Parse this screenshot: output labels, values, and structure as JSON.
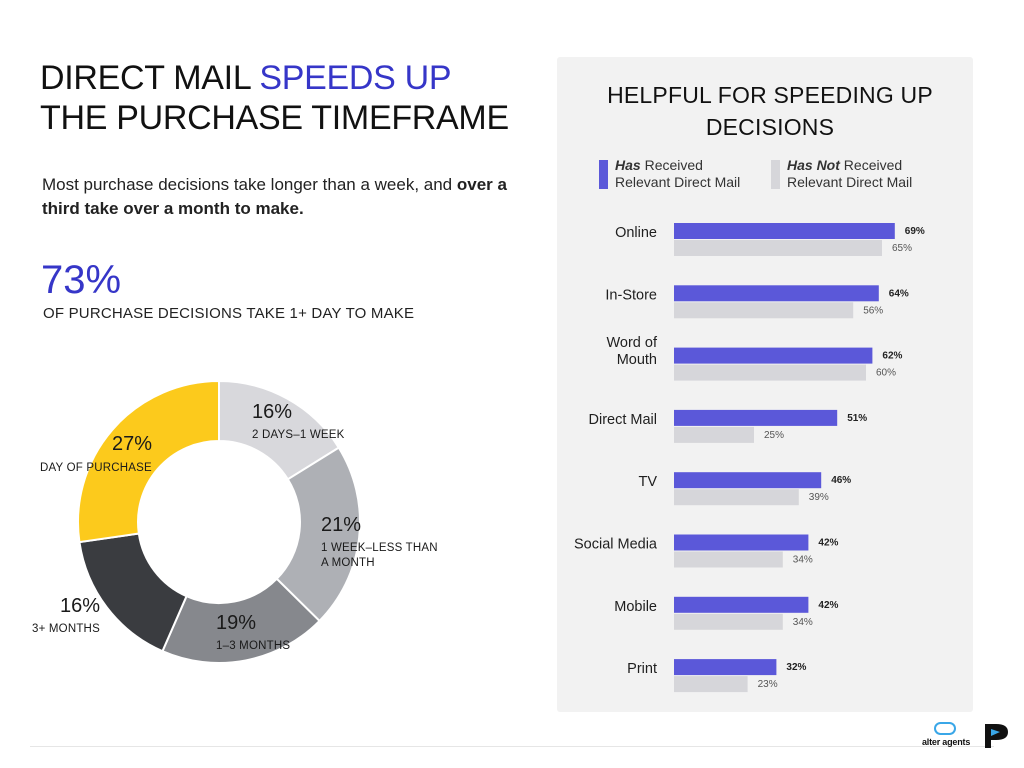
{
  "header": {
    "title_line1_part1": "DIRECT MAIL ",
    "title_line1_accent": "SPEEDS UP",
    "title_line2": "THE PURCHASE TIMEFRAME",
    "subtitle_part1": "Most purchase decisions take longer than a week, and ",
    "subtitle_bold": "over a third take over a month to make.",
    "big_stat": "73%",
    "big_stat_label": "OF PURCHASE DECISIONS TAKE 1+ DAY TO MAKE"
  },
  "colors": {
    "accent": "#3636c8",
    "has_received": "#5b58d9",
    "has_not_received": "#d6d6da",
    "panel_bg": "#f2f2f2",
    "pie": [
      "#fcca1c",
      "#d8d8dc",
      "#aeb0b5",
      "#86888d",
      "#3a3c40"
    ]
  },
  "chart_data": [
    {
      "type": "pie",
      "donut": true,
      "slices": [
        {
          "label": "DAY OF PURCHASE",
          "value": 27,
          "value_label": "27%"
        },
        {
          "label": "2 DAYS–1 WEEK",
          "value": 16,
          "value_label": "16%"
        },
        {
          "label_line1": "1 WEEK–LESS THAN",
          "label_line2": "A MONTH",
          "value": 21,
          "value_label": "21%"
        },
        {
          "label": "1–3 MONTHS",
          "value": 19,
          "value_label": "19%"
        },
        {
          "label": "3+ MONTHS",
          "value": 16,
          "value_label": "16%"
        }
      ]
    },
    {
      "type": "bar",
      "orientation": "horizontal",
      "title_line1": "HELPFUL FOR SPEEDING UP",
      "title_line2": "DECISIONS",
      "xlim": [
        0,
        100
      ],
      "legend": [
        {
          "em": "Has",
          "rest": " Received",
          "line2": "Relevant Direct Mail"
        },
        {
          "em": "Has Not",
          "rest": " Received",
          "line2": "Relevant Direct Mail"
        }
      ],
      "categories": [
        [
          "Online"
        ],
        [
          "In-Store"
        ],
        [
          "Word of",
          "Mouth"
        ],
        [
          "Direct Mail"
        ],
        [
          "TV"
        ],
        [
          "Social Media"
        ],
        [
          "Mobile"
        ],
        [
          "Print"
        ]
      ],
      "series": [
        {
          "values": [
            69,
            64,
            62,
            51,
            46,
            42,
            42,
            32
          ]
        },
        {
          "values": [
            65,
            56,
            60,
            25,
            39,
            34,
            34,
            23
          ]
        }
      ]
    }
  ],
  "footer": {
    "logo_text": "alter agents"
  }
}
